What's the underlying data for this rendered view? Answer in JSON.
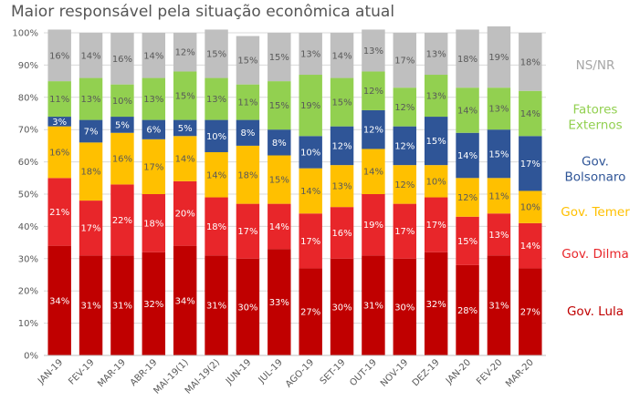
{
  "chart_data": {
    "type": "bar",
    "stacked": true,
    "title": "Maior responsável pela situação econômica atual",
    "categories": [
      "JAN-19",
      "FEV-19",
      "MAR-19",
      "ABR-19",
      "MAI-19(1)",
      "MAI-19(2)",
      "JUN-19",
      "JUL-19",
      "AGO-19",
      "SET-19",
      "OUT-19",
      "NOV-19",
      "DEZ-19",
      "JAN-20",
      "FEV-20",
      "MAR-20"
    ],
    "ylim": [
      0,
      100
    ],
    "y_ticks": [
      "0%",
      "10%",
      "20%",
      "30%",
      "40%",
      "50%",
      "60%",
      "70%",
      "80%",
      "90%",
      "100%"
    ],
    "grid": true,
    "series": [
      {
        "name": "Gov. Lula",
        "color": "#C00000",
        "label_color": "#ffffff",
        "values": [
          34,
          31,
          31,
          32,
          34,
          31,
          30,
          33,
          27,
          30,
          31,
          30,
          32,
          28,
          31,
          27
        ]
      },
      {
        "name": "Gov. Dilma",
        "color": "#E8262A",
        "label_color": "#ffffff",
        "values": [
          21,
          17,
          22,
          18,
          20,
          18,
          17,
          14,
          17,
          16,
          19,
          17,
          17,
          15,
          13,
          14
        ]
      },
      {
        "name": "Gov. Temer",
        "color": "#FFC000",
        "label_color": "#595959",
        "values": [
          16,
          18,
          16,
          17,
          14,
          14,
          18,
          15,
          14,
          13,
          14,
          12,
          10,
          12,
          11,
          10
        ]
      },
      {
        "name": "Gov. Bolsonaro",
        "color": "#2F5597",
        "label_color": "#ffffff",
        "values": [
          3,
          7,
          5,
          6,
          5,
          10,
          8,
          8,
          10,
          12,
          12,
          12,
          15,
          14,
          15,
          17
        ]
      },
      {
        "name": "Fatores Externos",
        "color": "#92D050",
        "label_color": "#595959",
        "values": [
          11,
          13,
          10,
          13,
          15,
          13,
          11,
          15,
          19,
          15,
          12,
          12,
          13,
          14,
          13,
          14
        ]
      },
      {
        "name": "NS/NR",
        "color": "#BFBFBF",
        "label_color": "#595959",
        "values": [
          16,
          14,
          16,
          14,
          12,
          15,
          15,
          15,
          13,
          14,
          13,
          17,
          13,
          18,
          19,
          18
        ]
      }
    ],
    "legend": [
      {
        "lines": [
          "NS/NR"
        ],
        "color": "#A6A6A6"
      },
      {
        "lines": [
          "Fatores",
          "Externos"
        ],
        "color": "#92D050"
      },
      {
        "lines": [
          "Gov.",
          "Bolsonaro"
        ],
        "color": "#2F5597"
      },
      {
        "lines": [
          "Gov. Temer"
        ],
        "color": "#FFC000"
      },
      {
        "lines": [
          "Gov. Dilma"
        ],
        "color": "#E8262A"
      },
      {
        "lines": [
          "Gov. Lula"
        ],
        "color": "#C00000"
      }
    ],
    "legend_placement": "right"
  }
}
